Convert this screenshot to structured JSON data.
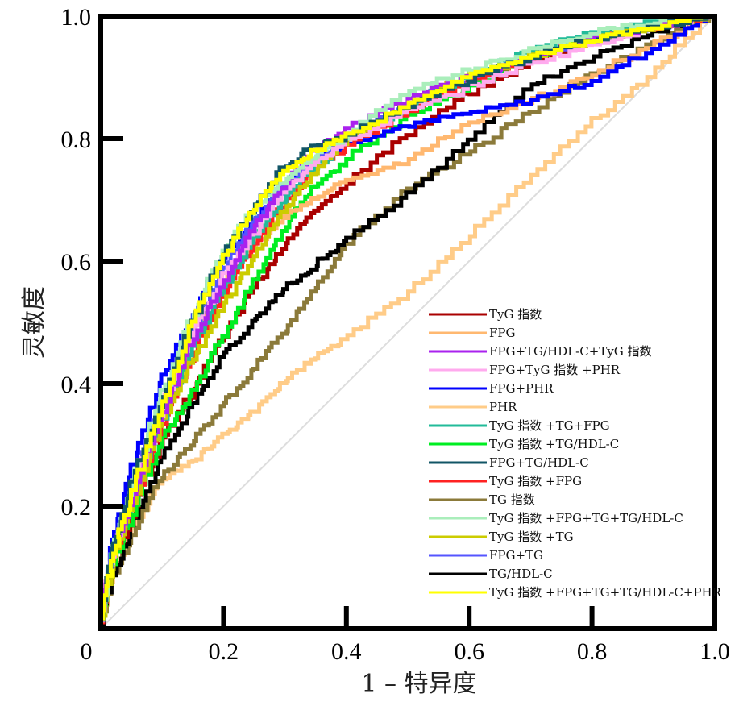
{
  "chart_data": {
    "type": "line",
    "title": "",
    "xlabel": "1 – 特异度",
    "ylabel": "灵敏度",
    "xlim": [
      0,
      1
    ],
    "ylim": [
      0,
      1
    ],
    "x_ticks": [
      {
        "value": 0,
        "label": "0"
      },
      {
        "value": 0.2,
        "label": "0.2"
      },
      {
        "value": 0.4,
        "label": "0.4"
      },
      {
        "value": 0.6,
        "label": "0.6"
      },
      {
        "value": 0.8,
        "label": "0.8"
      },
      {
        "value": 1.0,
        "label": "1.0"
      }
    ],
    "y_ticks": [
      {
        "value": 0.2,
        "label": "0.2"
      },
      {
        "value": 0.4,
        "label": "0.4"
      },
      {
        "value": 0.6,
        "label": "0.6"
      },
      {
        "value": 0.8,
        "label": "0.8"
      },
      {
        "value": 1.0,
        "label": "1.0"
      }
    ],
    "grid": false,
    "legend_position": "bottom-right",
    "reference_line": {
      "name": "diagonal",
      "color": "#dddddd",
      "x": [
        0,
        1
      ],
      "y": [
        0,
        1
      ]
    },
    "x": [
      0,
      0.02,
      0.05,
      0.1,
      0.15,
      0.2,
      0.25,
      0.3,
      0.35,
      0.4,
      0.5,
      0.6,
      0.7,
      0.8,
      0.9,
      1.0
    ],
    "series": [
      {
        "name": "TyG 指数",
        "color": "#aa0000",
        "values": [
          0,
          0.1,
          0.17,
          0.3,
          0.38,
          0.47,
          0.55,
          0.62,
          0.68,
          0.72,
          0.8,
          0.87,
          0.92,
          0.96,
          0.98,
          1.0
        ]
      },
      {
        "name": "FPG",
        "color": "#ffb870",
        "values": [
          0,
          0.12,
          0.22,
          0.35,
          0.47,
          0.56,
          0.62,
          0.67,
          0.7,
          0.73,
          0.76,
          0.82,
          0.86,
          0.9,
          0.95,
          1.0
        ]
      },
      {
        "name": "FPG+TG/HDL-C+TyG 指数",
        "color": "#aa22ee",
        "values": [
          0,
          0.12,
          0.2,
          0.34,
          0.46,
          0.56,
          0.65,
          0.72,
          0.78,
          0.81,
          0.86,
          0.9,
          0.93,
          0.96,
          0.98,
          1.0
        ]
      },
      {
        "name": "FPG+TyG 指数 +PHR",
        "color": "#ffaaee",
        "values": [
          0,
          0.12,
          0.21,
          0.35,
          0.47,
          0.57,
          0.64,
          0.71,
          0.76,
          0.79,
          0.84,
          0.88,
          0.92,
          0.95,
          0.98,
          1.0
        ]
      },
      {
        "name": "FPG+PHR",
        "color": "#0000ff",
        "values": [
          0,
          0.13,
          0.25,
          0.4,
          0.5,
          0.6,
          0.66,
          0.72,
          0.76,
          0.79,
          0.82,
          0.84,
          0.86,
          0.89,
          0.94,
          1.0
        ]
      },
      {
        "name": "PHR",
        "color": "#ffcc88",
        "values": [
          0,
          0.08,
          0.15,
          0.24,
          0.27,
          0.31,
          0.35,
          0.4,
          0.44,
          0.47,
          0.54,
          0.63,
          0.73,
          0.82,
          0.9,
          1.0
        ]
      },
      {
        "name": "TyG 指数 +TG+FPG",
        "color": "#22bb99",
        "values": [
          0,
          0.12,
          0.2,
          0.33,
          0.45,
          0.55,
          0.63,
          0.7,
          0.75,
          0.79,
          0.85,
          0.9,
          0.94,
          0.97,
          0.99,
          1.0
        ]
      },
      {
        "name": "TyG 指数 +TG/HDL-C",
        "color": "#00ee22",
        "values": [
          0,
          0.1,
          0.17,
          0.3,
          0.38,
          0.47,
          0.56,
          0.65,
          0.72,
          0.76,
          0.83,
          0.88,
          0.93,
          0.96,
          0.98,
          1.0
        ]
      },
      {
        "name": "FPG+TG/HDL-C",
        "color": "#115566",
        "values": [
          0,
          0.13,
          0.22,
          0.36,
          0.49,
          0.6,
          0.68,
          0.75,
          0.79,
          0.8,
          0.85,
          0.89,
          0.93,
          0.96,
          0.98,
          1.0
        ]
      },
      {
        "name": "TyG 指数 +FPG",
        "color": "#ff2222",
        "values": [
          0,
          0.11,
          0.19,
          0.32,
          0.44,
          0.54,
          0.62,
          0.69,
          0.75,
          0.78,
          0.84,
          0.89,
          0.93,
          0.96,
          0.98,
          1.0
        ]
      },
      {
        "name": "TG 指数",
        "color": "#8b7a3a",
        "values": [
          0,
          0.08,
          0.14,
          0.24,
          0.3,
          0.36,
          0.42,
          0.48,
          0.55,
          0.62,
          0.71,
          0.77,
          0.84,
          0.9,
          0.95,
          1.0
        ]
      },
      {
        "name": "TyG 指数 +FPG+TG+TG/HDL-C",
        "color": "#aaeebb",
        "values": [
          0,
          0.12,
          0.22,
          0.37,
          0.5,
          0.61,
          0.68,
          0.73,
          0.77,
          0.8,
          0.87,
          0.91,
          0.94,
          0.97,
          0.99,
          1.0
        ]
      },
      {
        "name": "TyG 指数 +TG",
        "color": "#cccc00",
        "values": [
          0,
          0.1,
          0.19,
          0.33,
          0.43,
          0.52,
          0.6,
          0.68,
          0.74,
          0.79,
          0.85,
          0.9,
          0.93,
          0.96,
          0.98,
          1.0
        ]
      },
      {
        "name": "FPG+TG",
        "color": "#5555ff",
        "values": [
          0,
          0.12,
          0.22,
          0.36,
          0.48,
          0.58,
          0.66,
          0.72,
          0.76,
          0.8,
          0.85,
          0.89,
          0.93,
          0.96,
          0.98,
          1.0
        ]
      },
      {
        "name": "TG/HDL-C",
        "color": "#000000",
        "values": [
          0,
          0.08,
          0.15,
          0.27,
          0.36,
          0.44,
          0.5,
          0.55,
          0.59,
          0.63,
          0.7,
          0.79,
          0.88,
          0.93,
          0.97,
          1.0
        ]
      },
      {
        "name": "TyG 指数 +FPG+TG+TG/HDL-C+PHR",
        "color": "#ffff00",
        "values": [
          0,
          0.11,
          0.21,
          0.35,
          0.49,
          0.6,
          0.68,
          0.74,
          0.78,
          0.8,
          0.85,
          0.9,
          0.93,
          0.96,
          0.98,
          1.0
        ]
      }
    ]
  }
}
